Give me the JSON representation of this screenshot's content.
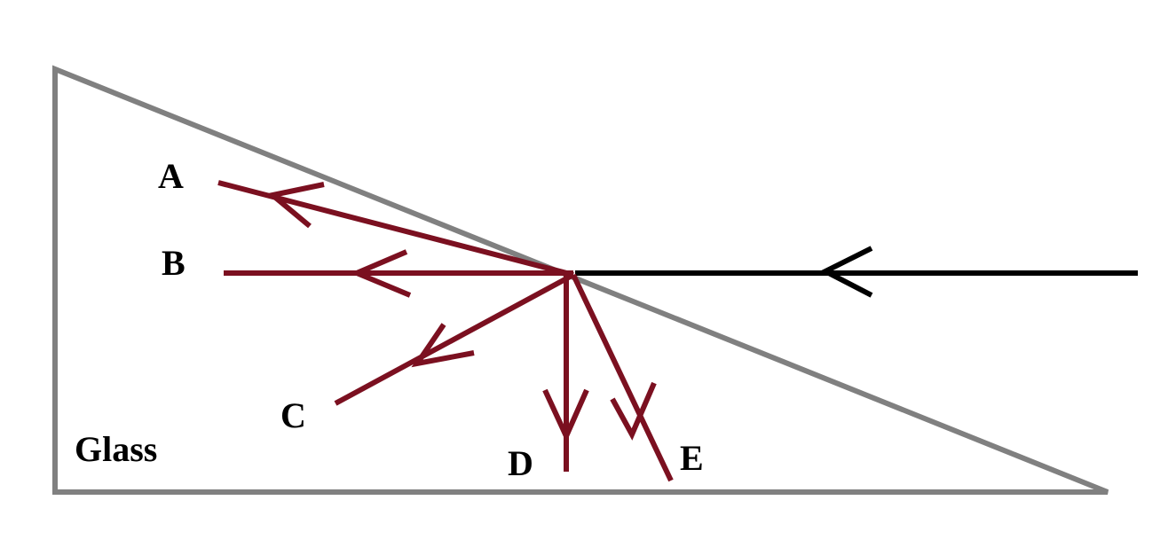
{
  "material_label": "Glass",
  "ray_labels": {
    "a": "A",
    "b": "B",
    "c": "C",
    "d": "D",
    "e": "E"
  },
  "colors": {
    "prism_outline": "#808080",
    "incident_ray": "#000000",
    "candidate_rays": "#7b1020",
    "label_text": "#000000",
    "background": "#ffffff"
  }
}
